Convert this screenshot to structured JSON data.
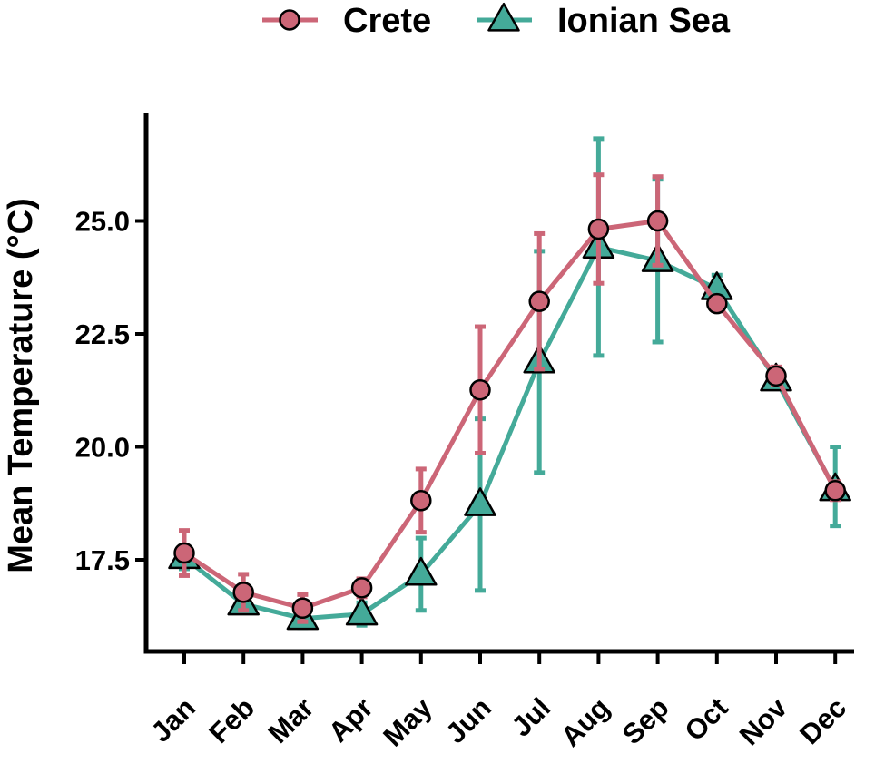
{
  "chart_data": {
    "type": "line",
    "title": "",
    "xlabel": "",
    "ylabel": "Mean Temperature (°C)",
    "categories": [
      "Jan",
      "Feb",
      "Mar",
      "Apr",
      "May",
      "Jun",
      "Jul",
      "Aug",
      "Sep",
      "Oct",
      "Nov",
      "Dec"
    ],
    "ylim": [
      15.8,
      27.6
    ],
    "yticks": [
      "17.5",
      "20.0",
      "22.5",
      "25.0"
    ],
    "legend_position": "top",
    "grid": false,
    "series": [
      {
        "name": "Crete",
        "color": "#CC6677",
        "marker": "circle",
        "values": [
          17.65,
          16.78,
          16.43,
          16.88,
          18.81,
          21.26,
          23.22,
          24.82,
          25.0,
          23.17,
          21.57,
          19.03
        ],
        "err_low": [
          17.15,
          16.38,
          16.13,
          16.68,
          18.11,
          19.86,
          21.72,
          23.62,
          24.02,
          23.02,
          21.37,
          18.83
        ],
        "err_high": [
          18.15,
          17.18,
          16.73,
          17.08,
          19.51,
          22.66,
          24.72,
          26.02,
          25.98,
          23.32,
          21.77,
          19.23
        ]
      },
      {
        "name": "Ionian Sea",
        "color": "#44AA99",
        "marker": "triangle",
        "values": [
          17.55,
          16.52,
          16.2,
          16.3,
          17.18,
          18.72,
          21.88,
          24.42,
          24.12,
          23.5,
          21.48,
          19.05
        ],
        "err_low": [
          17.3,
          16.37,
          16.0,
          16.05,
          16.38,
          16.82,
          19.43,
          22.02,
          22.32,
          23.15,
          21.33,
          18.25
        ],
        "err_high": [
          17.8,
          16.67,
          16.4,
          16.55,
          17.98,
          20.62,
          24.33,
          26.82,
          25.92,
          23.8,
          21.63,
          20.0
        ]
      }
    ]
  }
}
